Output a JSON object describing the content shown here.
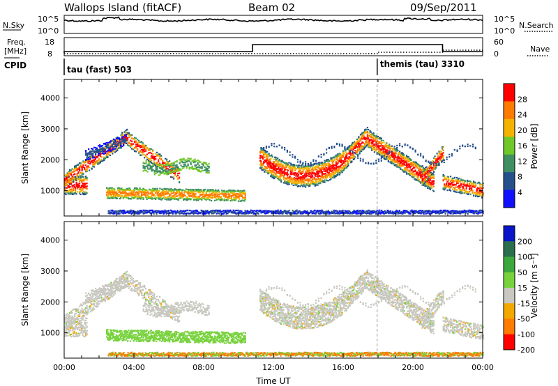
{
  "header": {
    "station": "Wallops Island (fitACF)",
    "beam": "Beam 02",
    "date": "09/Sep/2011"
  },
  "top_panels": {
    "nsky_label": "N.Sky",
    "nsky_ticks": [
      "10^5",
      "10^0"
    ],
    "nsearch_label": "N.Search",
    "nsearch_ticks": [
      "10^5",
      "10^0"
    ],
    "freq_label_1": "Freq.",
    "freq_label_2": "[MHz]",
    "freq_ticks": [
      "18",
      "8"
    ],
    "nave_label": "Nave",
    "nave_ticks": [
      "60",
      "0"
    ],
    "cpid_label": "CPID",
    "cpid_segments": [
      {
        "name": "tau (fast) 503",
        "start_hour": 0.0
      },
      {
        "name": "themis (tau) 3310",
        "start_hour": 17.95
      }
    ]
  },
  "chart_data": [
    {
      "type": "heatmap",
      "name": "power",
      "ylabel": "Slant Range [km]",
      "xlabel": "",
      "xlim_hours": [
        0,
        24
      ],
      "ylim_km": [
        180,
        4600
      ],
      "yticks": [
        "4000",
        "3000",
        "2000",
        "1000"
      ],
      "colorbar_label": "Power [dB]",
      "colorbar_ticks": [
        "28",
        "24",
        "20",
        "16",
        "12",
        "8",
        "4"
      ],
      "colorbar_colors": [
        "#ff0000",
        "#ff7a00",
        "#f2b400",
        "#70c828",
        "#3f8f62",
        "#26508c",
        "#1010ff"
      ]
    },
    {
      "type": "heatmap",
      "name": "velocity",
      "ylabel": "Slant Range [km]",
      "xlabel": "Time UT",
      "xlim_hours": [
        0,
        24
      ],
      "ylim_km": [
        180,
        4600
      ],
      "yticks": [
        "4000",
        "3000",
        "2000",
        "1000"
      ],
      "xticks": [
        "00:00",
        "04:00",
        "08:00",
        "12:00",
        "16:00",
        "20:00",
        "00:00"
      ],
      "colorbar_label": "Velocity [m s⁻¹]",
      "colorbar_ticks": [
        "200",
        "100",
        "50",
        "15",
        "-15",
        "-50",
        "-100",
        "-200"
      ],
      "colorbar_colors": [
        "#0a14c8",
        "#2a6e4e",
        "#3ca73c",
        "#77d23c",
        "#c8c8c0",
        "#f2a800",
        "#ff7a00",
        "#ff0000"
      ]
    }
  ]
}
